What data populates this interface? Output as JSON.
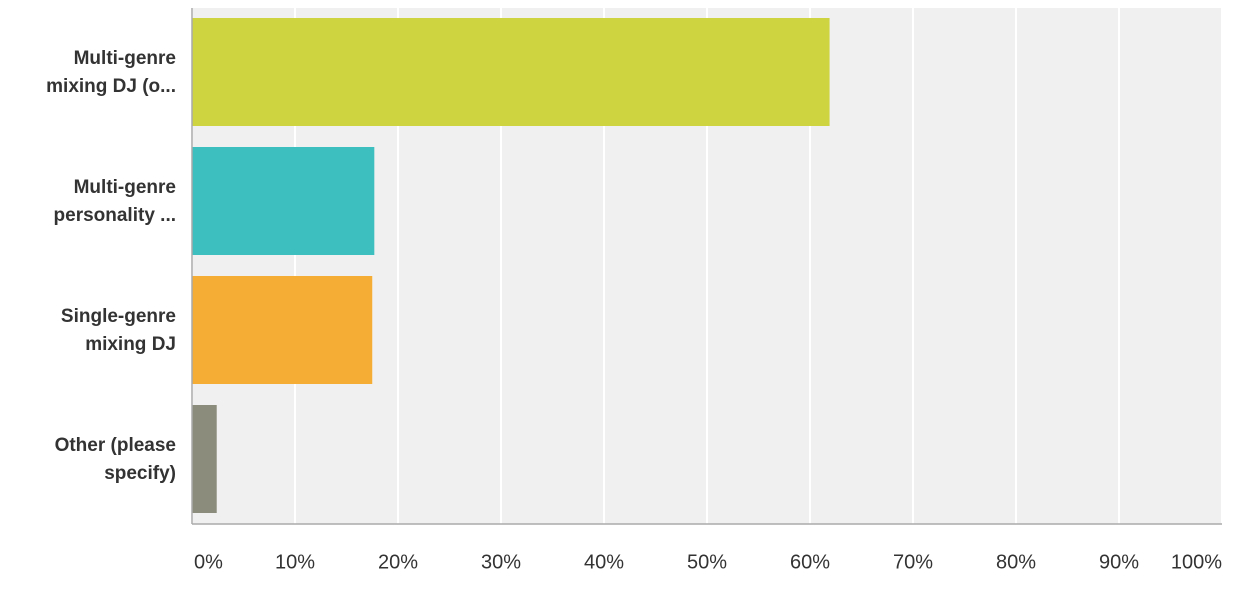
{
  "chart_data": {
    "type": "bar",
    "orientation": "horizontal",
    "categories": [
      "Multi-genre\nmixing DJ (o...",
      "Multi-genre\npersonality ...",
      "Single-genre\nmixing DJ",
      "Other (please\nspecify)"
    ],
    "values": [
      61.9,
      17.7,
      17.5,
      2.4
    ],
    "colors": [
      "#cdd43f",
      "#3dbfbf",
      "#f5ad35",
      "#8c8c7c"
    ],
    "xlim": [
      0,
      100
    ],
    "xticks": [
      {
        "value": 0,
        "label": "0%"
      },
      {
        "value": 10,
        "label": "10%"
      },
      {
        "value": 20,
        "label": "20%"
      },
      {
        "value": 30,
        "label": "30%"
      },
      {
        "value": 40,
        "label": "40%"
      },
      {
        "value": 50,
        "label": "50%"
      },
      {
        "value": 60,
        "label": "60%"
      },
      {
        "value": 70,
        "label": "70%"
      },
      {
        "value": 80,
        "label": "80%"
      },
      {
        "value": 90,
        "label": "90%"
      },
      {
        "value": 100,
        "label": "100%"
      }
    ],
    "grid": true
  }
}
